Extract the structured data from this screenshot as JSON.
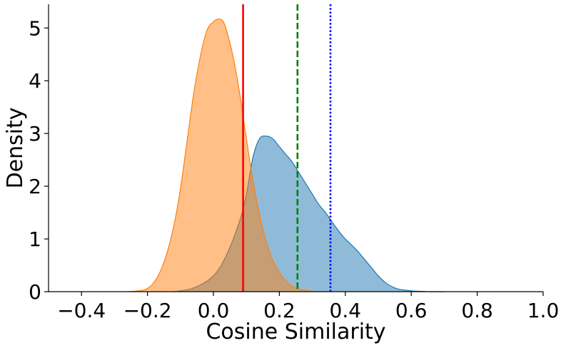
{
  "chart_data": {
    "type": "area",
    "title": "",
    "xlabel": "Cosine Similarity",
    "ylabel": "Density",
    "xlim": [
      -0.5,
      1.0
    ],
    "ylim": [
      0,
      5.45
    ],
    "grid": false,
    "legend": "none",
    "x_ticks": [
      -0.4,
      -0.2,
      0.0,
      0.2,
      0.4,
      0.6,
      0.8,
      1.0
    ],
    "x_tick_labels": [
      "−0.4",
      "−0.2",
      "0.0",
      "0.2",
      "0.4",
      "0.6",
      "0.8",
      "1.0"
    ],
    "y_ticks": [
      0,
      1,
      2,
      3,
      4,
      5
    ],
    "y_tick_labels": [
      "0",
      "1",
      "2",
      "3",
      "4",
      "5"
    ],
    "series": [
      {
        "color": "#1f77b4",
        "fill_opacity": 0.5,
        "x": [
          -0.12,
          -0.06,
          0.0,
          0.04,
          0.08,
          0.1,
          0.12,
          0.14,
          0.16,
          0.18,
          0.2,
          0.22,
          0.24,
          0.26,
          0.28,
          0.3,
          0.32,
          0.34,
          0.36,
          0.38,
          0.4,
          0.42,
          0.44,
          0.46,
          0.48,
          0.5,
          0.52,
          0.54,
          0.56,
          0.58,
          0.6,
          0.62,
          0.64,
          0.66,
          0.7
        ],
        "y": [
          0.0,
          0.07,
          0.3,
          0.7,
          1.35,
          1.85,
          2.55,
          2.9,
          2.95,
          2.9,
          2.75,
          2.6,
          2.45,
          2.25,
          2.05,
          1.85,
          1.65,
          1.5,
          1.32,
          1.15,
          1.0,
          0.88,
          0.75,
          0.6,
          0.45,
          0.3,
          0.18,
          0.1,
          0.05,
          0.03,
          0.015,
          0.008,
          0.004,
          0.0,
          0.0
        ]
      },
      {
        "color": "#ff7f0e",
        "fill_opacity": 0.5,
        "x": [
          -0.26,
          -0.22,
          -0.2,
          -0.18,
          -0.16,
          -0.14,
          -0.12,
          -0.1,
          -0.08,
          -0.06,
          -0.04,
          -0.02,
          0.0,
          0.01,
          0.02,
          0.03,
          0.04,
          0.06,
          0.08,
          0.1,
          0.12,
          0.14,
          0.16,
          0.18,
          0.2,
          0.22,
          0.24,
          0.26,
          0.28,
          0.3,
          0.34
        ],
        "y": [
          0.0,
          0.02,
          0.06,
          0.18,
          0.4,
          0.75,
          1.25,
          1.95,
          2.85,
          3.75,
          4.45,
          4.95,
          5.12,
          5.16,
          5.17,
          5.12,
          4.95,
          4.45,
          3.75,
          2.9,
          2.1,
          1.45,
          0.95,
          0.6,
          0.36,
          0.2,
          0.1,
          0.05,
          0.02,
          0.008,
          0.0
        ]
      }
    ],
    "vlines": [
      {
        "x": 0.09,
        "color": "#ff0000",
        "style": "solid"
      },
      {
        "x": 0.255,
        "color": "#008000",
        "style": "dashed"
      },
      {
        "x": 0.355,
        "color": "#0000ff",
        "style": "dotted"
      }
    ]
  }
}
